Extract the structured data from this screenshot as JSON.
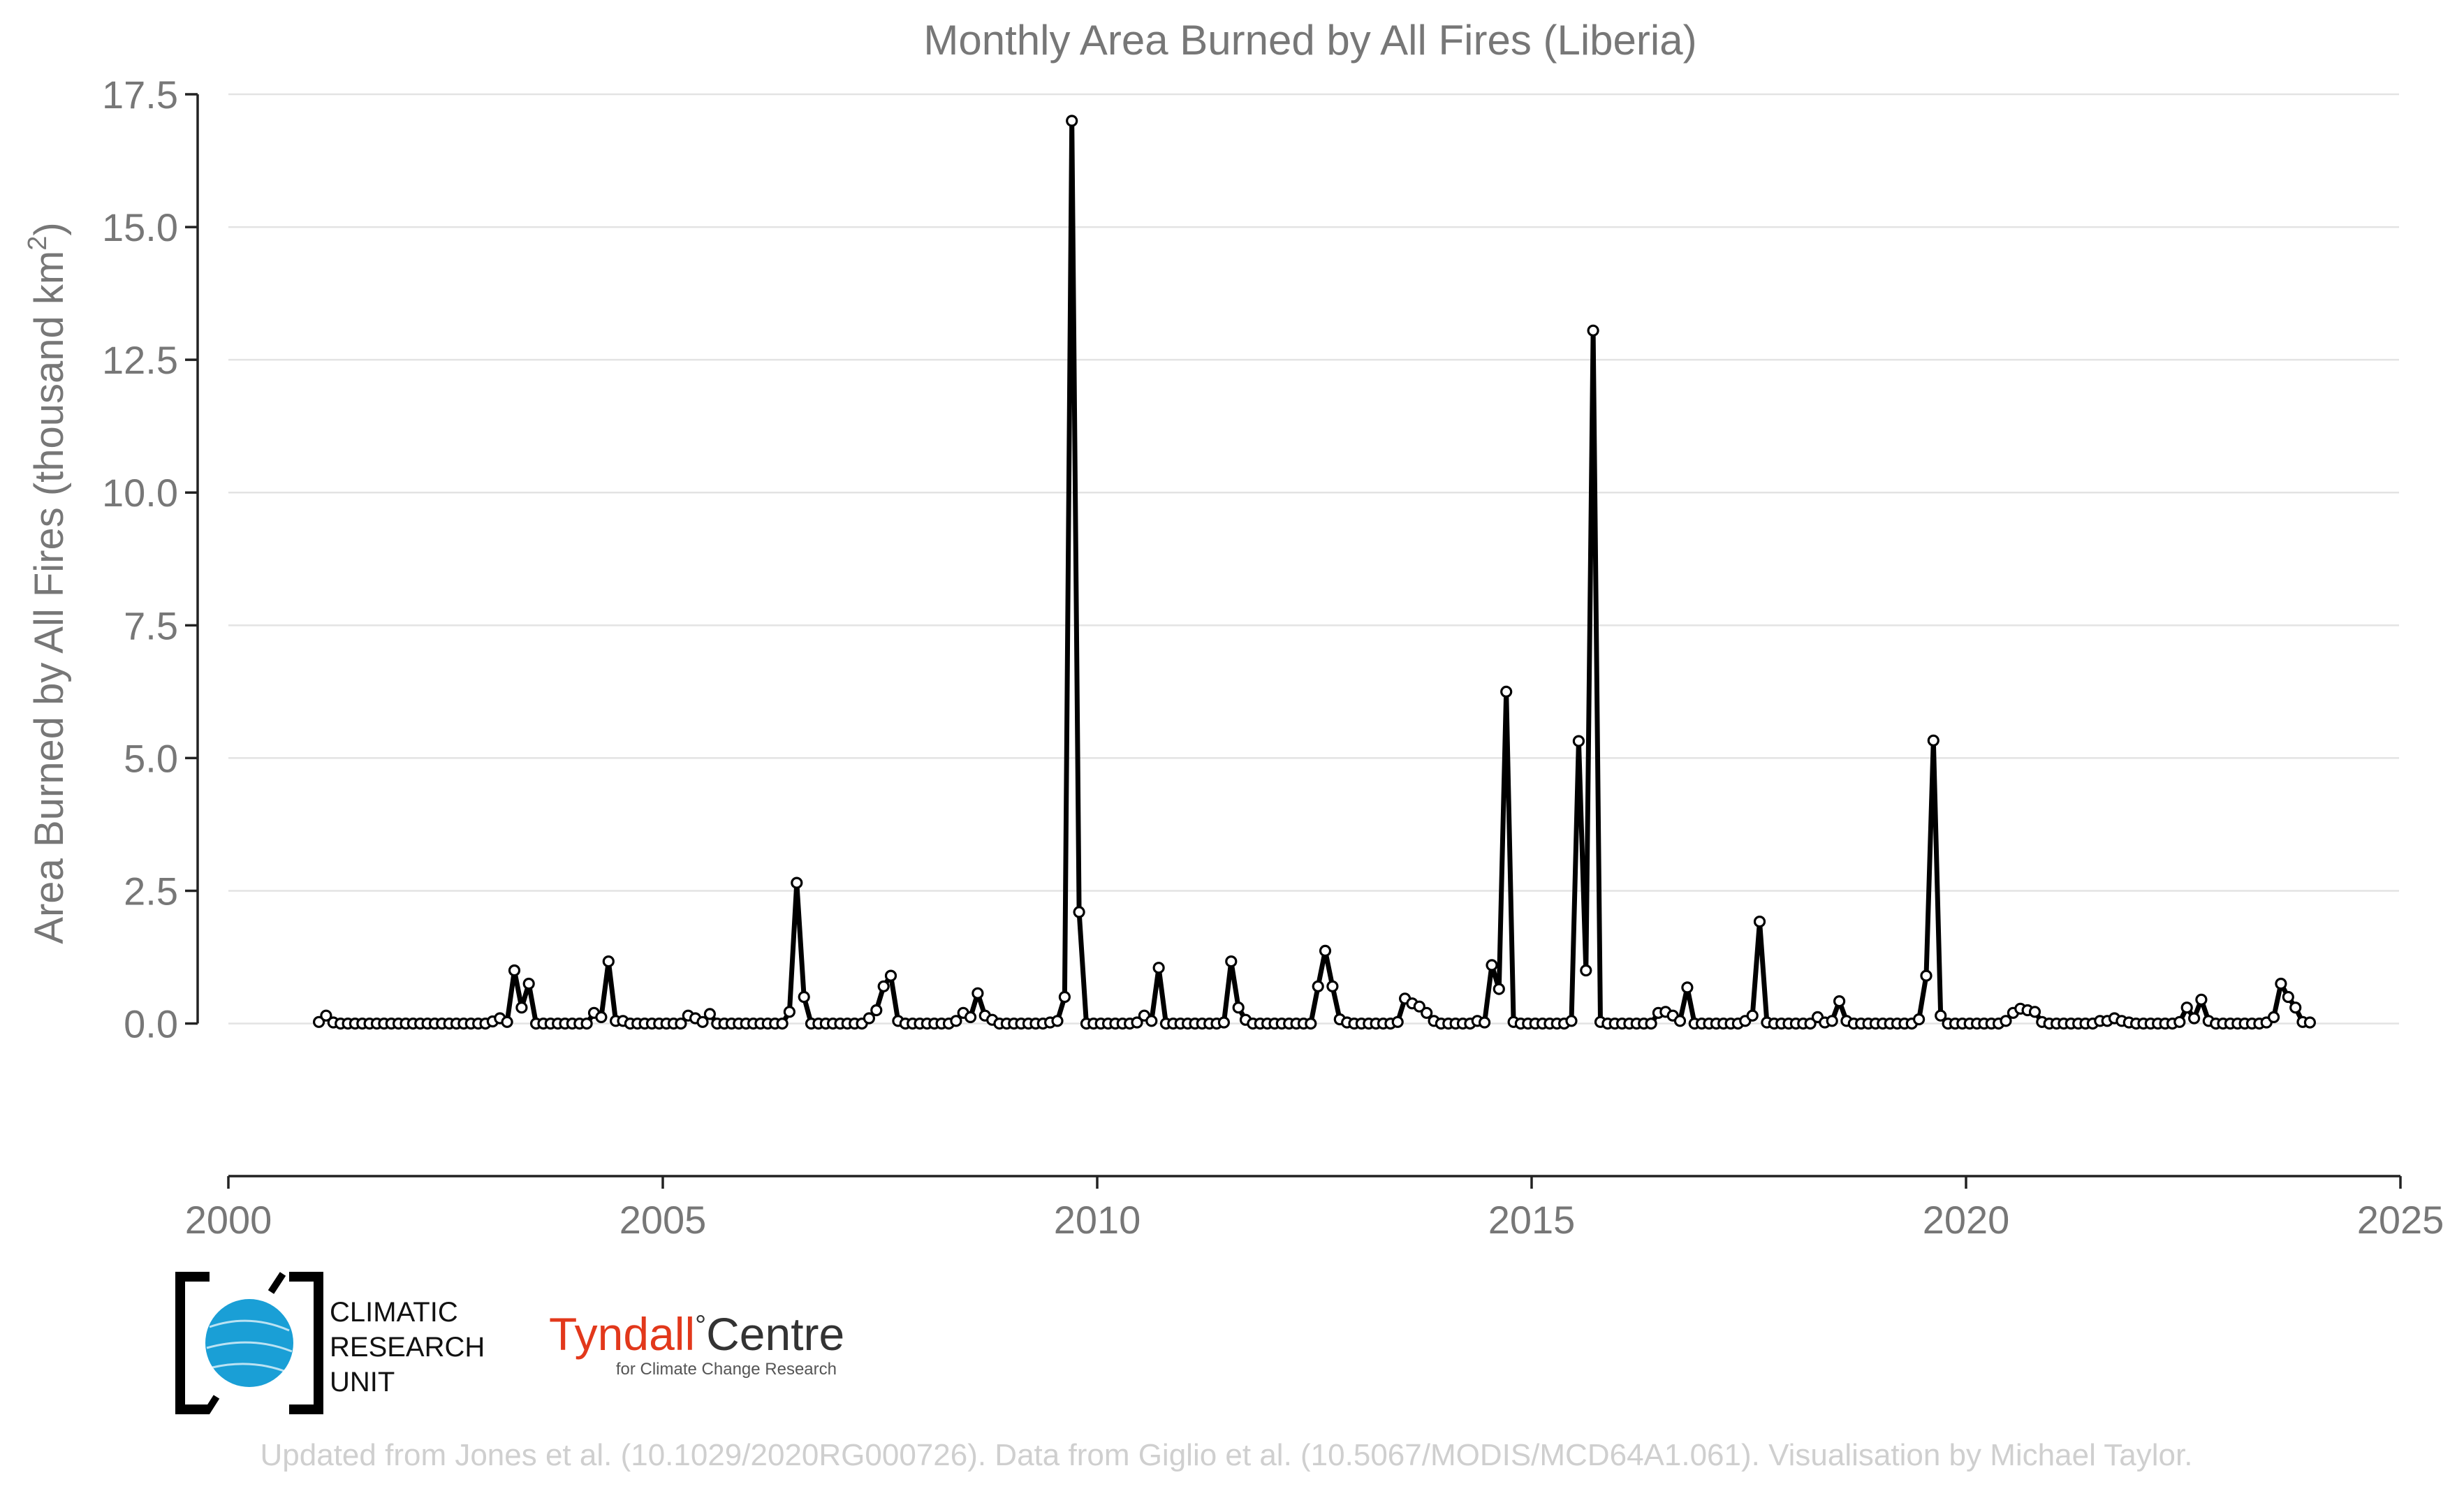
{
  "chart_data": {
    "type": "line",
    "title": "Monthly Area Burned by All Fires (Liberia)",
    "xlabel": "",
    "ylabel": "Area Burned by All Fires (thousand km",
    "ylabel_sup": "2",
    "ylabel_tail": ")",
    "xlim": [
      2000,
      2025
    ],
    "ylim": [
      -1.4,
      17.5
    ],
    "xticks": [
      2000,
      2005,
      2010,
      2015,
      2020,
      2025
    ],
    "xtick_labels": [
      "2000",
      "2005",
      "2010",
      "2015",
      "2020",
      "2025"
    ],
    "yticks": [
      0,
      2.5,
      5,
      7.5,
      10,
      12.5,
      15,
      17.5
    ],
    "ytick_labels": [
      "0.0",
      "2.5",
      "5.0",
      "7.5",
      "10.0",
      "12.5",
      "15.0",
      "17.5"
    ],
    "grid": true,
    "line_color": "#000000",
    "start": [
      2001,
      1
    ],
    "values": [
      0.03,
      0.15,
      0.02,
      0,
      0,
      0,
      0,
      0,
      0,
      0,
      0,
      0,
      0,
      0,
      0,
      0,
      0,
      0,
      0,
      0,
      0,
      0,
      0,
      0,
      0.04,
      0.1,
      0.03,
      1.0,
      0.3,
      0.75,
      0,
      0,
      0,
      0,
      0,
      0,
      0,
      0,
      0.2,
      0.12,
      1.17,
      0.05,
      0.05,
      0,
      0,
      0,
      0,
      0,
      0,
      0,
      0,
      0.15,
      0.1,
      0.03,
      0.18,
      0,
      0,
      0,
      0,
      0,
      0,
      0,
      0,
      0,
      0,
      0.22,
      2.65,
      0.5,
      0,
      0,
      0,
      0,
      0,
      0,
      0,
      0,
      0.1,
      0.25,
      0.7,
      0.9,
      0.05,
      0,
      0,
      0,
      0,
      0,
      0,
      0,
      0.05,
      0.2,
      0.12,
      0.57,
      0.15,
      0.07,
      0,
      0,
      0,
      0,
      0,
      0,
      0,
      0.02,
      0.05,
      0.5,
      17.0,
      2.1,
      0,
      0,
      0,
      0,
      0,
      0,
      0,
      0.02,
      0.15,
      0.05,
      1.05,
      0,
      0,
      0,
      0,
      0,
      0,
      0,
      0,
      0.02,
      1.17,
      0.3,
      0.07,
      0,
      0,
      0,
      0,
      0,
      0,
      0,
      0,
      0,
      0.7,
      1.37,
      0.7,
      0.08,
      0.02,
      0,
      0,
      0,
      0,
      0,
      0,
      0.03,
      0.47,
      0.38,
      0.32,
      0.2,
      0.05,
      0,
      0,
      0,
      0,
      0,
      0.05,
      0.02,
      1.1,
      0.65,
      6.25,
      0.03,
      0,
      0,
      0,
      0,
      0,
      0,
      0,
      0.05,
      5.32,
      1.0,
      13.05,
      0.03,
      0,
      0,
      0,
      0,
      0,
      0,
      0,
      0.2,
      0.22,
      0.15,
      0.05,
      0.68,
      0,
      0,
      0,
      0,
      0,
      0,
      0,
      0.05,
      0.15,
      1.92,
      0.02,
      0,
      0,
      0,
      0,
      0,
      0,
      0.12,
      0.02,
      0.05,
      0.42,
      0.05,
      0,
      0,
      0,
      0,
      0,
      0,
      0,
      0,
      0,
      0.08,
      0.9,
      5.33,
      0.15,
      0,
      0,
      0,
      0,
      0,
      0,
      0,
      0,
      0.05,
      0.2,
      0.28,
      0.25,
      0.22,
      0.03,
      0,
      0,
      0,
      0,
      0,
      0,
      0,
      0.05,
      0.05,
      0.1,
      0.05,
      0.02,
      0,
      0,
      0,
      0,
      0,
      0,
      0.03,
      0.3,
      0.1,
      0.45,
      0.05,
      0,
      0,
      0,
      0,
      0,
      0,
      0,
      0.02,
      0.12,
      0.75,
      0.5,
      0.3,
      0.03,
      0.02
    ]
  },
  "branding": {
    "cru_line1": "CLIMATIC",
    "cru_line2": "RESEARCH",
    "cru_line3": "UNIT",
    "tyndall_word": "Tyndall",
    "tyndall_degree": "°",
    "tyndall_centre": "Centre",
    "tyndall_tagline": "for Climate Change Research",
    "cru_color": "#1a9fd6",
    "tyndall_color": "#e2381b"
  },
  "credit": "Updated from Jones et al. (10.1029/2020RG000726). Data from Giglio et al. (10.5067/MODIS/MCD64A1.061). Visualisation by Michael Taylor."
}
